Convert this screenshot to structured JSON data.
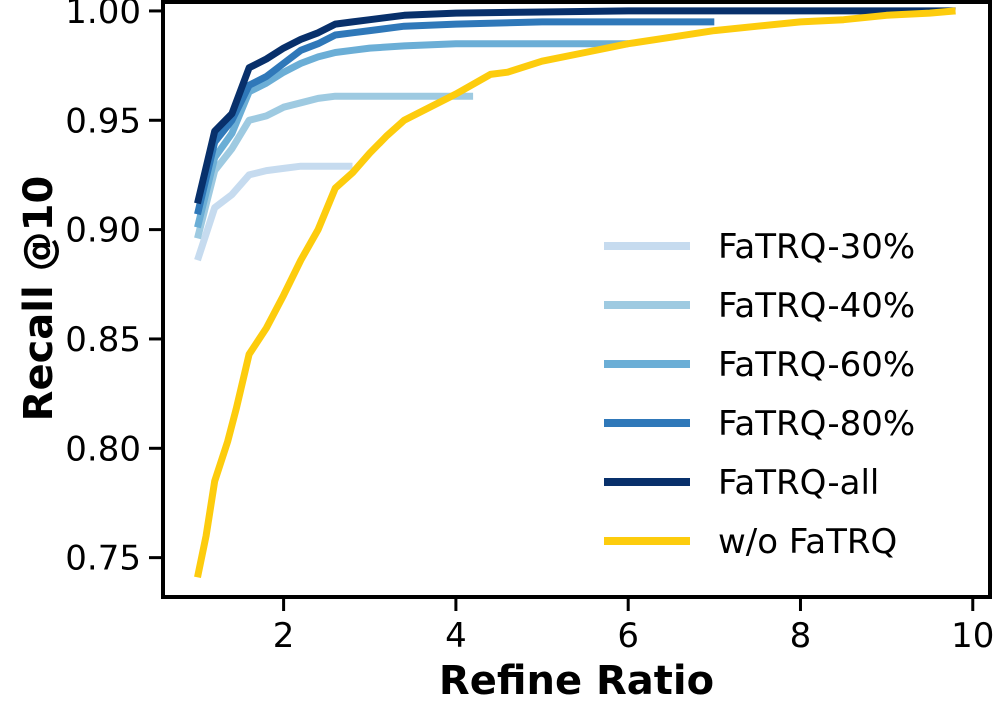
{
  "chart_data": {
    "type": "line",
    "title": "",
    "xlabel": "Refine Ratio",
    "ylabel": "Recall @10",
    "xlim": [
      0.6,
      10.2
    ],
    "ylim": [
      0.732,
      1.005
    ],
    "xticks": [
      2,
      4,
      6,
      8,
      10
    ],
    "xtick_labels": [
      "2",
      "4",
      "6",
      "8",
      "10"
    ],
    "yticks": [
      0.75,
      0.8,
      0.85,
      0.9,
      0.95,
      1.0
    ],
    "ytick_labels": [
      "0.75",
      "0.80",
      "0.85",
      "0.90",
      "0.95",
      "1.00"
    ],
    "grid": false,
    "legend_position": "lower-right",
    "series": [
      {
        "name": "FaTRQ-30%",
        "color": "#c6dbef",
        "x": [
          1.0,
          1.2,
          1.4,
          1.6,
          1.8,
          2.0,
          2.2,
          2.4,
          2.6,
          2.8
        ],
        "y": [
          0.886,
          0.91,
          0.916,
          0.925,
          0.927,
          0.928,
          0.929,
          0.929,
          0.929,
          0.929
        ]
      },
      {
        "name": "FaTRQ-40%",
        "color": "#9ecae1",
        "x": [
          1.0,
          1.2,
          1.4,
          1.6,
          1.8,
          2.0,
          2.2,
          2.4,
          2.6,
          2.8,
          3.0,
          3.4,
          3.8,
          4.2
        ],
        "y": [
          0.896,
          0.927,
          0.937,
          0.95,
          0.952,
          0.956,
          0.958,
          0.96,
          0.961,
          0.961,
          0.961,
          0.961,
          0.961,
          0.961
        ]
      },
      {
        "name": "FaTRQ-60%",
        "color": "#6baed6",
        "x": [
          1.0,
          1.2,
          1.4,
          1.6,
          1.8,
          2.0,
          2.2,
          2.4,
          2.6,
          2.8,
          3.0,
          3.4,
          4.0,
          5.0,
          6.0
        ],
        "y": [
          0.901,
          0.933,
          0.944,
          0.963,
          0.967,
          0.972,
          0.976,
          0.979,
          0.981,
          0.982,
          0.983,
          0.984,
          0.985,
          0.985,
          0.985
        ]
      },
      {
        "name": "FaTRQ-80%",
        "color": "#2f78b9",
        "x": [
          1.0,
          1.2,
          1.4,
          1.6,
          1.8,
          2.0,
          2.2,
          2.4,
          2.6,
          2.8,
          3.0,
          3.4,
          4.0,
          5.0,
          6.0,
          7.0
        ],
        "y": [
          0.907,
          0.94,
          0.95,
          0.966,
          0.97,
          0.976,
          0.982,
          0.985,
          0.989,
          0.99,
          0.991,
          0.993,
          0.994,
          0.995,
          0.995,
          0.995
        ]
      },
      {
        "name": "FaTRQ-all",
        "color": "#08306b",
        "x": [
          1.0,
          1.2,
          1.4,
          1.6,
          1.8,
          2.0,
          2.2,
          2.4,
          2.6,
          2.8,
          3.0,
          3.4,
          4.0,
          5.0,
          6.0,
          8.0,
          9.8
        ],
        "y": [
          0.912,
          0.945,
          0.953,
          0.974,
          0.978,
          0.983,
          0.987,
          0.99,
          0.994,
          0.995,
          0.996,
          0.998,
          0.999,
          0.9995,
          1.0,
          1.0,
          1.0
        ]
      },
      {
        "name": "w/o FaTRQ",
        "color": "#fdcc0d",
        "x": [
          1.0,
          1.1,
          1.2,
          1.35,
          1.45,
          1.6,
          1.8,
          2.0,
          2.2,
          2.4,
          2.6,
          2.8,
          3.0,
          3.2,
          3.4,
          3.6,
          4.0,
          4.4,
          4.6,
          5.0,
          5.5,
          6.0,
          6.5,
          7.0,
          7.5,
          8.0,
          8.5,
          9.0,
          9.5,
          9.8
        ],
        "y": [
          0.741,
          0.76,
          0.785,
          0.803,
          0.818,
          0.843,
          0.855,
          0.87,
          0.886,
          0.9,
          0.919,
          0.926,
          0.935,
          0.943,
          0.95,
          0.954,
          0.962,
          0.971,
          0.972,
          0.977,
          0.981,
          0.985,
          0.988,
          0.991,
          0.993,
          0.995,
          0.996,
          0.998,
          0.999,
          1.0
        ]
      }
    ]
  }
}
